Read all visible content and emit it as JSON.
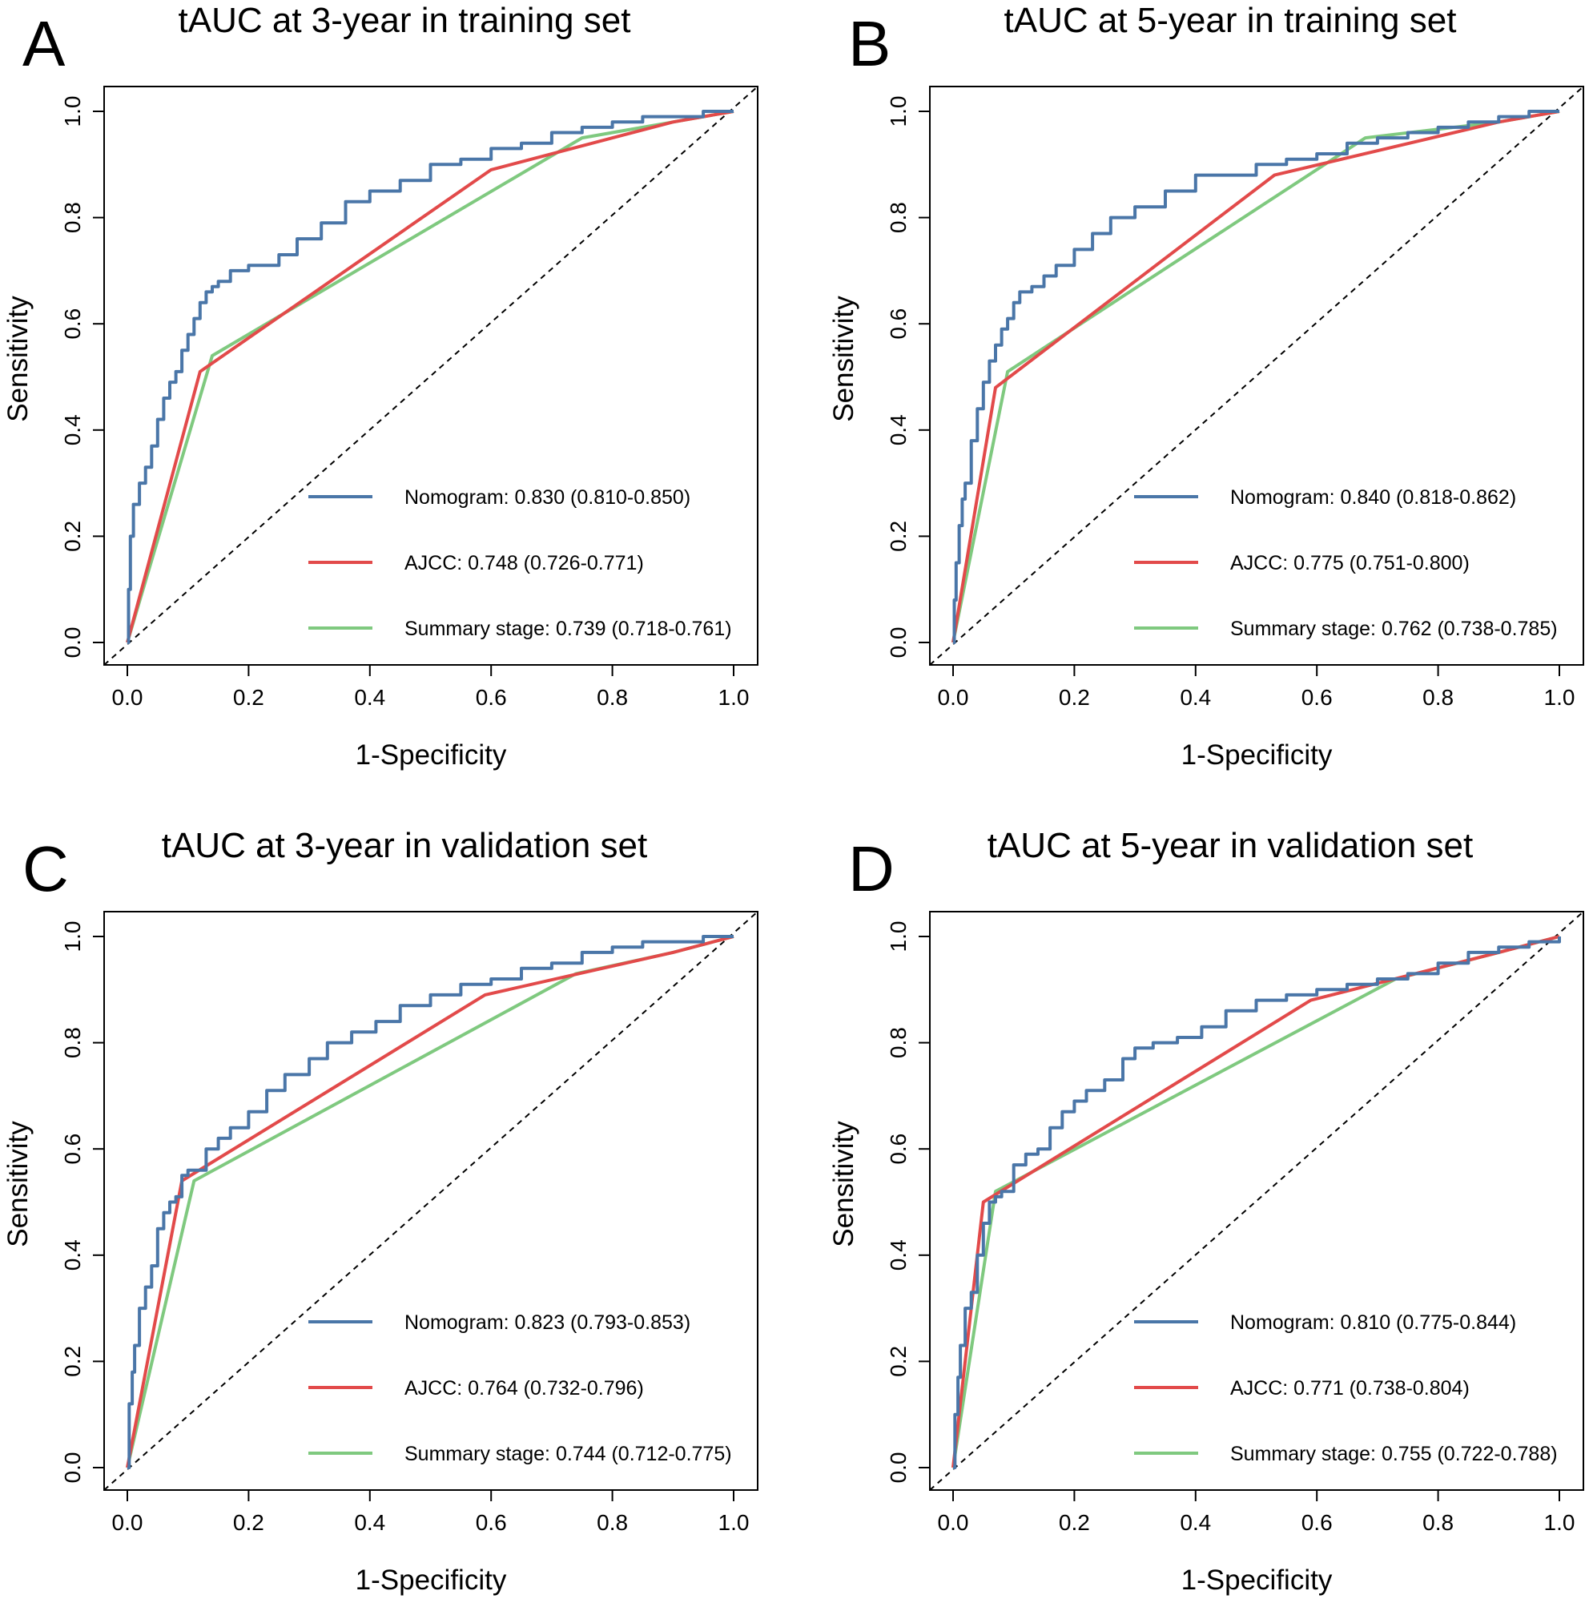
{
  "figure": {
    "colors": {
      "nomogram": "#4a76a8",
      "ajcc": "#e24a4a",
      "summary": "#7fc97f",
      "reference": "#000000"
    },
    "panels": [
      {
        "letter": "A",
        "title": "tAUC at 3-year in training set",
        "chart_key": 0,
        "legend": {
          "nomogram": "Nomogram: 0.830 (0.810-0.850)",
          "ajcc": "AJCC: 0.748 (0.726-0.771)",
          "summary": "Summary stage: 0.739 (0.718-0.761)"
        }
      },
      {
        "letter": "B",
        "title": "tAUC at 5-year in training set",
        "chart_key": 1,
        "legend": {
          "nomogram": "Nomogram: 0.840 (0.818-0.862)",
          "ajcc": "AJCC: 0.775 (0.751-0.800)",
          "summary": "Summary stage: 0.762 (0.738-0.785)"
        }
      },
      {
        "letter": "C",
        "title": "tAUC at 3-year in validation set",
        "chart_key": 2,
        "legend": {
          "nomogram": "Nomogram: 0.823 (0.793-0.853)",
          "ajcc": "AJCC: 0.764 (0.732-0.796)",
          "summary": "Summary stage: 0.744 (0.712-0.775)"
        }
      },
      {
        "letter": "D",
        "title": "tAUC at 5-year in validation set",
        "chart_key": 3,
        "legend": {
          "nomogram": "Nomogram: 0.810 (0.775-0.844)",
          "ajcc": "AJCC: 0.771 (0.738-0.804)",
          "summary": "Summary stage: 0.755 (0.722-0.788)"
        }
      }
    ]
  },
  "chart_data": [
    {
      "type": "line",
      "title": "tAUC at 3-year in training set",
      "xlabel": "1-Specificity",
      "ylabel": "Sensitivity",
      "xlim": [
        0,
        1
      ],
      "ylim": [
        0,
        1
      ],
      "xticks": [
        "0.0",
        "0.2",
        "0.4",
        "0.6",
        "0.8",
        "1.0"
      ],
      "yticks": [
        "0.0",
        "0.2",
        "0.4",
        "0.6",
        "0.8",
        "1.0"
      ],
      "legend_position": "bottom-right",
      "series": [
        {
          "name": "Nomogram",
          "label": "Nomogram: 0.830 (0.810-0.850)",
          "step": true,
          "x": [
            0,
            0.002,
            0.005,
            0.01,
            0.02,
            0.03,
            0.04,
            0.05,
            0.06,
            0.07,
            0.08,
            0.09,
            0.1,
            0.11,
            0.12,
            0.13,
            0.14,
            0.15,
            0.17,
            0.2,
            0.25,
            0.28,
            0.32,
            0.36,
            0.4,
            0.45,
            0.5,
            0.55,
            0.6,
            0.65,
            0.7,
            0.75,
            0.8,
            0.85,
            0.9,
            0.95,
            1.0
          ],
          "y": [
            0,
            0.1,
            0.2,
            0.26,
            0.3,
            0.33,
            0.37,
            0.42,
            0.46,
            0.49,
            0.51,
            0.55,
            0.58,
            0.61,
            0.64,
            0.66,
            0.67,
            0.68,
            0.7,
            0.71,
            0.73,
            0.76,
            0.79,
            0.83,
            0.85,
            0.87,
            0.9,
            0.91,
            0.93,
            0.94,
            0.96,
            0.97,
            0.98,
            0.99,
            0.99,
            1.0,
            1.0
          ]
        },
        {
          "name": "AJCC",
          "label": "AJCC: 0.748 (0.726-0.771)",
          "x": [
            0,
            0.12,
            0.6,
            0.9,
            1.0
          ],
          "y": [
            0,
            0.51,
            0.89,
            0.98,
            1.0
          ]
        },
        {
          "name": "Summary stage",
          "label": "Summary stage: 0.739 (0.718-0.761)",
          "x": [
            0,
            0.14,
            0.75,
            0.9,
            1.0
          ],
          "y": [
            0,
            0.54,
            0.95,
            0.98,
            1.0
          ]
        },
        {
          "name": "Reference",
          "x": [
            0,
            1
          ],
          "y": [
            0,
            1
          ]
        }
      ]
    },
    {
      "type": "line",
      "title": "tAUC at 5-year in training set",
      "xlabel": "1-Specificity",
      "ylabel": "Sensitivity",
      "xlim": [
        0,
        1
      ],
      "ylim": [
        0,
        1
      ],
      "xticks": [
        "0.0",
        "0.2",
        "0.4",
        "0.6",
        "0.8",
        "1.0"
      ],
      "yticks": [
        "0.0",
        "0.2",
        "0.4",
        "0.6",
        "0.8",
        "1.0"
      ],
      "legend_position": "bottom-right",
      "series": [
        {
          "name": "Nomogram",
          "label": "Nomogram: 0.840 (0.818-0.862)",
          "step": true,
          "x": [
            0,
            0.002,
            0.005,
            0.01,
            0.015,
            0.02,
            0.03,
            0.04,
            0.05,
            0.06,
            0.07,
            0.08,
            0.09,
            0.1,
            0.11,
            0.13,
            0.15,
            0.17,
            0.2,
            0.23,
            0.26,
            0.3,
            0.35,
            0.4,
            0.45,
            0.5,
            0.55,
            0.6,
            0.65,
            0.7,
            0.75,
            0.8,
            0.85,
            0.9,
            0.95,
            1.0
          ],
          "y": [
            0,
            0.08,
            0.15,
            0.22,
            0.27,
            0.3,
            0.38,
            0.44,
            0.49,
            0.53,
            0.56,
            0.59,
            0.61,
            0.64,
            0.66,
            0.67,
            0.69,
            0.71,
            0.74,
            0.77,
            0.8,
            0.82,
            0.85,
            0.88,
            0.88,
            0.9,
            0.91,
            0.92,
            0.94,
            0.95,
            0.96,
            0.97,
            0.98,
            0.99,
            1.0,
            1.0
          ]
        },
        {
          "name": "AJCC",
          "label": "AJCC: 0.775 (0.751-0.800)",
          "x": [
            0,
            0.07,
            0.53,
            0.9,
            1.0
          ],
          "y": [
            0,
            0.48,
            0.88,
            0.98,
            1.0
          ]
        },
        {
          "name": "Summary stage",
          "label": "Summary stage: 0.762 (0.738-0.785)",
          "x": [
            0,
            0.09,
            0.68,
            0.9,
            1.0
          ],
          "y": [
            0,
            0.51,
            0.95,
            0.98,
            1.0
          ]
        },
        {
          "name": "Reference",
          "x": [
            0,
            1
          ],
          "y": [
            0,
            1
          ]
        }
      ]
    },
    {
      "type": "line",
      "title": "tAUC at 3-year in validation set",
      "xlabel": "1-Specificity",
      "ylabel": "Sensitivity",
      "xlim": [
        0,
        1
      ],
      "ylim": [
        0,
        1
      ],
      "xticks": [
        "0.0",
        "0.2",
        "0.4",
        "0.6",
        "0.8",
        "1.0"
      ],
      "yticks": [
        "0.0",
        "0.2",
        "0.4",
        "0.6",
        "0.8",
        "1.0"
      ],
      "legend_position": "bottom-right",
      "series": [
        {
          "name": "Nomogram",
          "label": "Nomogram: 0.823 (0.793-0.853)",
          "step": true,
          "x": [
            0,
            0.003,
            0.008,
            0.012,
            0.02,
            0.03,
            0.04,
            0.05,
            0.06,
            0.07,
            0.08,
            0.09,
            0.1,
            0.12,
            0.13,
            0.15,
            0.17,
            0.2,
            0.23,
            0.26,
            0.3,
            0.33,
            0.37,
            0.41,
            0.45,
            0.5,
            0.55,
            0.6,
            0.65,
            0.7,
            0.75,
            0.8,
            0.85,
            0.9,
            0.95,
            1.0
          ],
          "y": [
            0,
            0.12,
            0.18,
            0.23,
            0.3,
            0.34,
            0.38,
            0.45,
            0.48,
            0.5,
            0.51,
            0.55,
            0.56,
            0.56,
            0.6,
            0.62,
            0.64,
            0.67,
            0.71,
            0.74,
            0.77,
            0.8,
            0.82,
            0.84,
            0.87,
            0.89,
            0.91,
            0.92,
            0.94,
            0.95,
            0.97,
            0.98,
            0.99,
            0.99,
            1.0,
            1.0
          ]
        },
        {
          "name": "AJCC",
          "label": "AJCC: 0.764 (0.732-0.796)",
          "x": [
            0,
            0.09,
            0.59,
            0.9,
            1.0
          ],
          "y": [
            0,
            0.54,
            0.89,
            0.97,
            1.0
          ]
        },
        {
          "name": "Summary stage",
          "label": "Summary stage: 0.744 (0.712-0.775)",
          "x": [
            0,
            0.11,
            0.74,
            0.9,
            1.0
          ],
          "y": [
            0,
            0.54,
            0.93,
            0.97,
            1.0
          ]
        },
        {
          "name": "Reference",
          "x": [
            0,
            1
          ],
          "y": [
            0,
            1
          ]
        }
      ]
    },
    {
      "type": "line",
      "title": "tAUC at 5-year in validation set",
      "xlabel": "1-Specificity",
      "ylabel": "Sensitivity",
      "xlim": [
        0,
        1
      ],
      "ylim": [
        0,
        1
      ],
      "xticks": [
        "0.0",
        "0.2",
        "0.4",
        "0.6",
        "0.8",
        "1.0"
      ],
      "yticks": [
        "0.0",
        "0.2",
        "0.4",
        "0.6",
        "0.8",
        "1.0"
      ],
      "legend_position": "bottom-right",
      "series": [
        {
          "name": "Nomogram",
          "label": "Nomogram: 0.810 (0.775-0.844)",
          "step": true,
          "x": [
            0,
            0.003,
            0.008,
            0.012,
            0.02,
            0.03,
            0.04,
            0.05,
            0.06,
            0.07,
            0.08,
            0.09,
            0.1,
            0.12,
            0.14,
            0.16,
            0.18,
            0.2,
            0.22,
            0.25,
            0.28,
            0.3,
            0.33,
            0.37,
            0.41,
            0.45,
            0.5,
            0.55,
            0.6,
            0.65,
            0.7,
            0.75,
            0.8,
            0.85,
            0.9,
            0.95,
            1.0
          ],
          "y": [
            0,
            0.1,
            0.17,
            0.23,
            0.3,
            0.33,
            0.4,
            0.46,
            0.5,
            0.51,
            0.52,
            0.52,
            0.57,
            0.59,
            0.6,
            0.64,
            0.67,
            0.69,
            0.71,
            0.73,
            0.77,
            0.79,
            0.8,
            0.81,
            0.83,
            0.86,
            0.88,
            0.89,
            0.9,
            0.91,
            0.92,
            0.93,
            0.95,
            0.97,
            0.98,
            0.99,
            1.0
          ]
        },
        {
          "name": "AJCC",
          "label": "AJCC: 0.771 (0.738-0.804)",
          "x": [
            0,
            0.05,
            0.59,
            0.9,
            1.0
          ],
          "y": [
            0,
            0.5,
            0.88,
            0.97,
            1.0
          ]
        },
        {
          "name": "Summary stage",
          "label": "Summary stage: 0.755 (0.722-0.788)",
          "x": [
            0,
            0.07,
            0.73,
            0.9,
            1.0
          ],
          "y": [
            0,
            0.52,
            0.92,
            0.97,
            1.0
          ]
        },
        {
          "name": "Reference",
          "x": [
            0,
            1
          ],
          "y": [
            0,
            1
          ]
        }
      ]
    }
  ]
}
